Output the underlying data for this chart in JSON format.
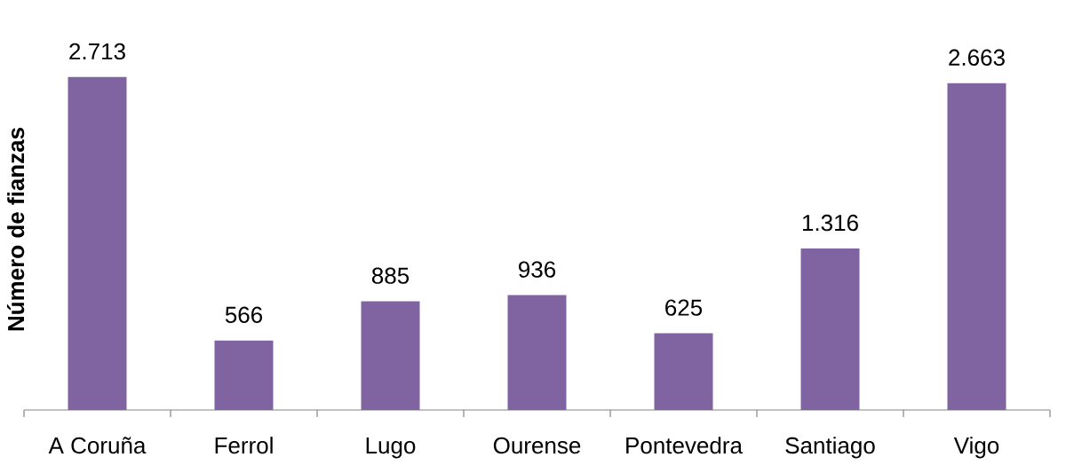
{
  "chart_data": {
    "type": "bar",
    "ylabel": "Número de fianzas",
    "categories": [
      "A Coruña",
      "Ferrol",
      "Lugo",
      "Ourense",
      "Pontevedra",
      "Santiago",
      "Vigo"
    ],
    "values": [
      2713,
      566,
      885,
      936,
      625,
      1316,
      2663
    ],
    "value_labels": [
      "2.713",
      "566",
      "885",
      "936",
      "625",
      "1.316",
      "2.663"
    ],
    "color": "#8064a2"
  }
}
